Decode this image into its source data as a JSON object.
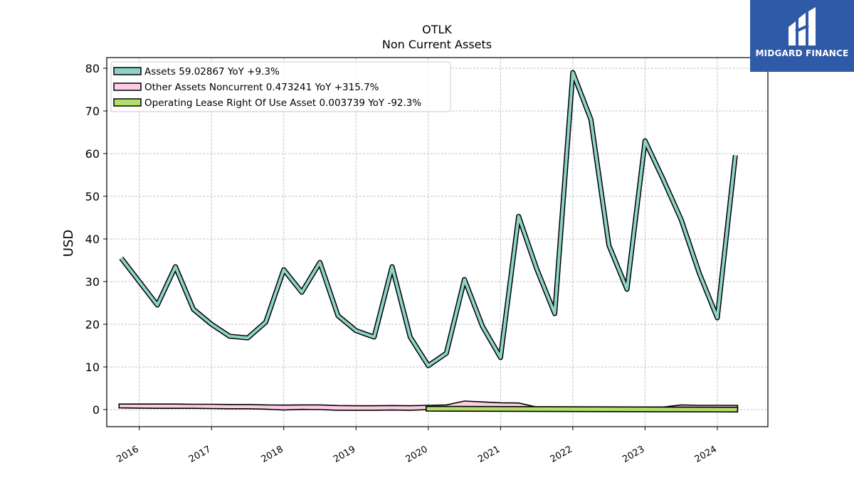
{
  "brand": {
    "name": "MIDGARD FINANCE",
    "color": "#2f5aa8"
  },
  "chart_data": {
    "type": "line",
    "title": "OTLK",
    "subtitle": "Non Current  Assets",
    "xlabel": "",
    "ylabel": "USD",
    "xlim": [
      2015.55,
      2024.7
    ],
    "ylim": [
      -4,
      82.5
    ],
    "x_ticks": [
      "2016",
      "2017",
      "2018",
      "2019",
      "2020",
      "2021",
      "2022",
      "2023",
      "2024"
    ],
    "y_ticks": [
      "0",
      "10",
      "20",
      "30",
      "40",
      "50",
      "60",
      "70",
      "80"
    ],
    "grid": true,
    "legend_position": "top-left",
    "series": [
      {
        "name": "Assets",
        "legend_label": "Assets  59.02867 YoY +9.3%",
        "color": "#8dd3c7",
        "style": "line",
        "x": [
          2015.75,
          2016.0,
          2016.25,
          2016.5,
          2016.75,
          2017.0,
          2017.25,
          2017.5,
          2017.75,
          2018.0,
          2018.25,
          2018.5,
          2018.75,
          2019.0,
          2019.25,
          2019.5,
          2019.75,
          2020.0,
          2020.25,
          2020.5,
          2020.75,
          2021.0,
          2021.25,
          2021.5,
          2021.75,
          2022.0,
          2022.25,
          2022.5,
          2022.75,
          2023.0,
          2023.25,
          2023.5,
          2023.75,
          2024.0,
          2024.25
        ],
        "y": [
          35.5,
          30.0,
          24.5,
          33.5,
          23.5,
          20.0,
          17.2,
          16.8,
          20.5,
          32.8,
          27.5,
          34.5,
          22.0,
          18.5,
          17.0,
          33.5,
          17.0,
          10.3,
          13.2,
          30.5,
          19.5,
          12.2,
          45.3,
          33.0,
          22.5,
          79.0,
          68.0,
          38.5,
          28.2,
          63.0,
          54.0,
          44.5,
          32.0,
          21.5,
          59.6
        ]
      },
      {
        "name": "Other Assets Noncurrent",
        "legend_label": "Other Assets Noncurrent  0.473241 YoY +315.7%",
        "color": "#fccde5",
        "style": "area",
        "x": [
          2015.72,
          2016.0,
          2016.25,
          2016.5,
          2016.75,
          2017.0,
          2017.25,
          2017.5,
          2017.75,
          2018.0,
          2018.25,
          2018.5,
          2018.75,
          2019.0,
          2019.25,
          2019.5,
          2019.75,
          2020.0,
          2020.25,
          2020.5,
          2020.75,
          2021.0,
          2021.25,
          2021.5,
          2021.75,
          2022.0,
          2022.25,
          2022.5,
          2022.75,
          2023.0,
          2023.25,
          2023.5,
          2023.75,
          2024.0,
          2024.28
        ],
        "y": [
          1.3,
          1.3,
          1.3,
          1.3,
          1.25,
          1.25,
          1.2,
          1.2,
          1.1,
          1.05,
          1.1,
          1.1,
          0.95,
          0.9,
          0.9,
          0.95,
          0.9,
          1.0,
          1.1,
          2.0,
          1.8,
          1.6,
          1.55,
          0.6,
          0.6,
          0.6,
          0.6,
          0.6,
          0.6,
          0.6,
          0.6,
          1.1,
          1.0,
          1.0,
          1.0
        ],
        "y_low": [
          0.4,
          0.35,
          0.3,
          0.3,
          0.3,
          0.25,
          0.2,
          0.2,
          0.1,
          -0.1,
          0.05,
          0.0,
          -0.15,
          -0.15,
          -0.15,
          -0.1,
          -0.15,
          0.0,
          0.0,
          0.0,
          0.0,
          0.0,
          0.0,
          0.0,
          0.0,
          0.0,
          0.0,
          0.0,
          0.0,
          0.0,
          0.0,
          0.0,
          0.0,
          0.0,
          0.0
        ]
      },
      {
        "name": "Operating Lease Right Of Use Asset",
        "legend_label": "Operating Lease Right Of Use Asset  0.003739 YoY -92.3%",
        "color": "#b3de69",
        "style": "area",
        "x": [
          2019.97,
          2024.28
        ],
        "y": [
          0.75,
          0.55
        ],
        "y_low": [
          -0.35,
          -0.55
        ]
      }
    ]
  }
}
